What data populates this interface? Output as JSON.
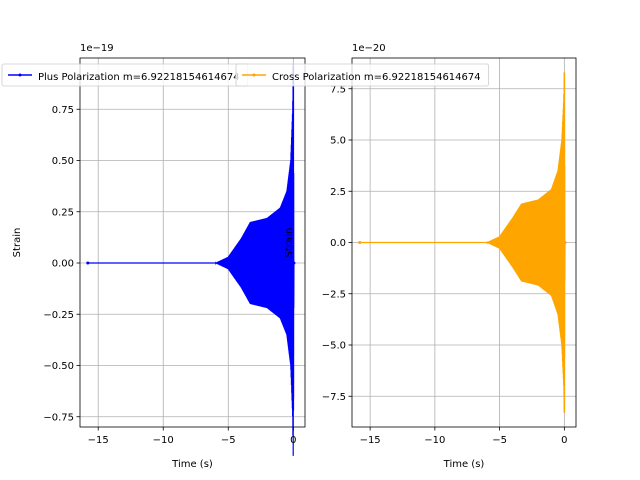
{
  "chart_data": [
    {
      "type": "line",
      "xlabel": "Time (s)",
      "ylabel": "Strain",
      "offset_text": "1e−19",
      "legend_placement": "upper-left, extends past axes",
      "grid": true,
      "xlim": [
        -16.4,
        0.9
      ],
      "ylim": [
        -0.8,
        1.0
      ],
      "xticks": [
        -15,
        -10,
        -5,
        0
      ],
      "xtick_labels": [
        "−15",
        "−10",
        "−5",
        "0"
      ],
      "yticks": [
        -0.75,
        -0.5,
        -0.25,
        0.0,
        0.25,
        0.5,
        0.75
      ],
      "ytick_labels": [
        "−0.75",
        "−0.50",
        "−0.25",
        "0.00",
        "0.25",
        "0.50",
        "0.75"
      ],
      "series": [
        {
          "name": "Plus Polarization m=6.92218154614674",
          "color": "#0000ff",
          "x_range": [
            -15.8,
            0.05
          ],
          "envelope": [
            {
              "t": -15.8,
              "amp": 0.0
            },
            {
              "t": -6.0,
              "amp": 0.0
            },
            {
              "t": -5.0,
              "amp": 0.03
            },
            {
              "t": -4.0,
              "amp": 0.12
            },
            {
              "t": -3.3,
              "amp": 0.2
            },
            {
              "t": -2.0,
              "amp": 0.22
            },
            {
              "t": -1.0,
              "amp": 0.27
            },
            {
              "t": -0.5,
              "amp": 0.35
            },
            {
              "t": -0.2,
              "amp": 0.5
            },
            {
              "t": -0.05,
              "amp": 0.75
            },
            {
              "t": 0.0,
              "amp_max": 0.97,
              "amp_min": -0.72
            },
            {
              "t": 0.05,
              "amp": 0.0
            }
          ]
        }
      ]
    },
    {
      "type": "line",
      "xlabel": "Time (s)",
      "ylabel": "Strain",
      "offset_text": "1e−20",
      "legend_placement": "upper-left, extends past axes",
      "grid": true,
      "xlim": [
        -16.4,
        0.9
      ],
      "ylim": [
        -9.0,
        9.0
      ],
      "xticks": [
        -15,
        -10,
        -5,
        0
      ],
      "xtick_labels": [
        "−15",
        "−10",
        "−5",
        "0"
      ],
      "yticks": [
        -7.5,
        -5.0,
        -2.5,
        0.0,
        2.5,
        5.0,
        7.5
      ],
      "ytick_labels": [
        "−7.5",
        "−5.0",
        "−2.5",
        "0.0",
        "2.5",
        "5.0",
        "7.5"
      ],
      "series": [
        {
          "name": "Cross Polarization m=6.92218154614674",
          "color": "#ffa500",
          "x_range": [
            -15.8,
            0.05
          ],
          "envelope": [
            {
              "t": -15.8,
              "amp": 0.0
            },
            {
              "t": -6.0,
              "amp": 0.0
            },
            {
              "t": -5.0,
              "amp": 0.3
            },
            {
              "t": -4.0,
              "amp": 1.2
            },
            {
              "t": -3.3,
              "amp": 1.9
            },
            {
              "t": -2.0,
              "amp": 2.1
            },
            {
              "t": -1.0,
              "amp": 2.6
            },
            {
              "t": -0.5,
              "amp": 3.5
            },
            {
              "t": -0.2,
              "amp": 5.0
            },
            {
              "t": -0.05,
              "amp": 7.0
            },
            {
              "t": 0.0,
              "amp_max": 8.3,
              "amp_min": -8.3
            },
            {
              "t": 0.05,
              "amp": 0.0
            }
          ]
        }
      ]
    }
  ]
}
